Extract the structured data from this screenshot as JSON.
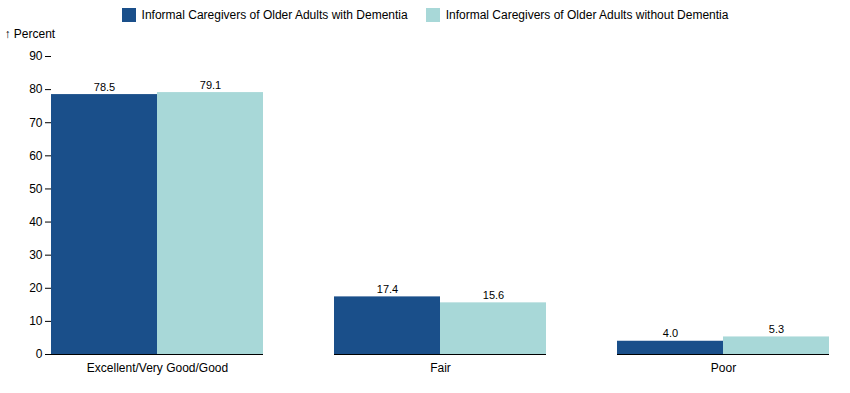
{
  "chart_data": {
    "type": "bar",
    "categories": [
      "Excellent/Very Good/Good",
      "Fair",
      "Poor"
    ],
    "series": [
      {
        "name": "Informal Caregivers of Older Adults with Dementia",
        "color": "#1a4f8a",
        "values": [
          78.5,
          17.4,
          4.0
        ],
        "value_labels": [
          "78.5",
          "17.4",
          "4.0"
        ]
      },
      {
        "name": "Informal Caregivers of Older Adults without Dementia",
        "color": "#a8d8d8",
        "values": [
          79.1,
          15.6,
          5.3
        ],
        "value_labels": [
          "79.1",
          "15.6",
          "5.3"
        ]
      }
    ],
    "ylabel": "Percent",
    "ylim": [
      0,
      90
    ],
    "yticks": [
      0,
      10,
      20,
      30,
      40,
      50,
      60,
      70,
      80,
      90
    ],
    "grid": false,
    "legend": "top",
    "data_labels": true
  }
}
